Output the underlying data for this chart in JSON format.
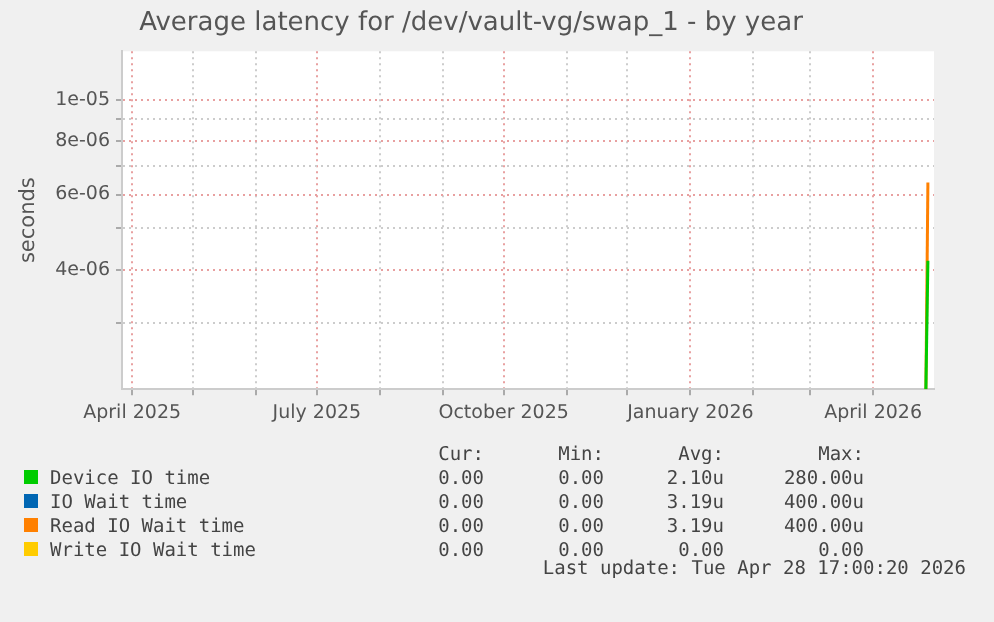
{
  "chart_data": {
    "type": "line",
    "title": "Average latency for /dev/vault-vg/swap_1 - by year",
    "ylabel": "seconds",
    "log": true,
    "grid": true,
    "legend": "bottom",
    "marker": "none",
    "line_style": "solid",
    "x": [
      "2026-04-27",
      "2026-04-28"
    ],
    "xlim": [
      "2025-03-27",
      "2026-05-01"
    ],
    "xticks": [
      {
        "value": "2025-04-01",
        "label": "April 2025"
      },
      {
        "value": "2025-05-01",
        "label": null
      },
      {
        "value": "2025-06-01",
        "label": null
      },
      {
        "value": "2025-07-01",
        "label": "July 2025"
      },
      {
        "value": "2025-08-01",
        "label": null
      },
      {
        "value": "2025-09-01",
        "label": null
      },
      {
        "value": "2025-10-01",
        "label": "October 2025"
      },
      {
        "value": "2025-11-01",
        "label": null
      },
      {
        "value": "2025-12-01",
        "label": null
      },
      {
        "value": "2026-01-01",
        "label": "January 2026"
      },
      {
        "value": "2026-02-01",
        "label": null
      },
      {
        "value": "2026-03-01",
        "label": null
      },
      {
        "value": "2026-04-01",
        "label": "April 2026"
      }
    ],
    "ylim": [
      2.1e-06,
      1.3e-05
    ],
    "yticks": [
      {
        "value": 3e-06,
        "label": null
      },
      {
        "value": 4e-06,
        "label": "4e-06"
      },
      {
        "value": 5e-06,
        "label": null
      },
      {
        "value": 6e-06,
        "label": "6e-06"
      },
      {
        "value": 7e-06,
        "label": null
      },
      {
        "value": 8e-06,
        "label": "8e-06"
      },
      {
        "value": 9e-06,
        "label": null
      },
      {
        "value": 1e-05,
        "label": "1e-05"
      }
    ],
    "series": [
      {
        "name": "Device IO time",
        "color": "#00cc00",
        "values": [
          2.1e-06,
          4.2e-06
        ]
      },
      {
        "name": "IO Wait time",
        "color": "#0066b3",
        "values": [
          null,
          null
        ]
      },
      {
        "name": "Read IO Wait time",
        "color": "#ff8000",
        "values": [
          2.1e-06,
          6.4e-06
        ]
      },
      {
        "name": "Write IO Wait time",
        "color": "#ffcc00",
        "values": [
          null,
          null
        ]
      }
    ],
    "annotations": [
      "Cur:",
      "Min:",
      "Avg:",
      "Max:",
      "0.00",
      "0.00",
      "2.10u",
      "280.00u",
      "0.00",
      "0.00",
      "3.19u",
      "400.00u",
      "0.00",
      "0.00",
      "3.19u",
      "400.00u",
      "0.00",
      "0.00",
      "0.00",
      "0.00",
      "Last update: Tue Apr 28 17:00:20 2026"
    ]
  }
}
